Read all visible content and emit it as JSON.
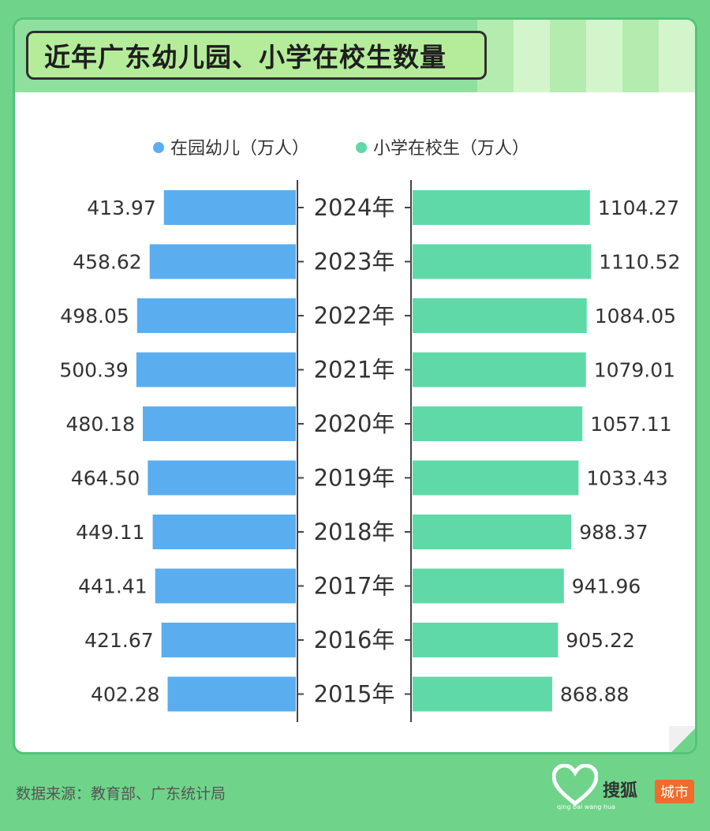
{
  "title": "近年广东幼儿园、小学在校生数量",
  "source": "数据来源：教育部、广东统计局",
  "logo": {
    "brand": "搜狐",
    "badge": "城市",
    "tiny": "qing bai wang hua"
  },
  "colors": {
    "left": "#5aaef0",
    "right": "#5fd9a8",
    "header": "#8fe09e",
    "frame": "#6fd48a"
  },
  "chart_data": {
    "type": "bar",
    "orientation": "horizontal-butterfly",
    "categories": [
      "2024年",
      "2023年",
      "2022年",
      "2021年",
      "2020年",
      "2019年",
      "2018年",
      "2017年",
      "2016年",
      "2015年"
    ],
    "series": [
      {
        "name": "在园幼儿（万人）",
        "values": [
          413.97,
          458.62,
          498.05,
          500.39,
          480.18,
          464.5,
          449.11,
          441.41,
          421.67,
          402.28
        ]
      },
      {
        "name": "小学在校生（万人）",
        "values": [
          1104.27,
          1110.52,
          1084.05,
          1079.01,
          1057.11,
          1033.43,
          988.37,
          941.96,
          905.22,
          868.88
        ]
      }
    ]
  }
}
